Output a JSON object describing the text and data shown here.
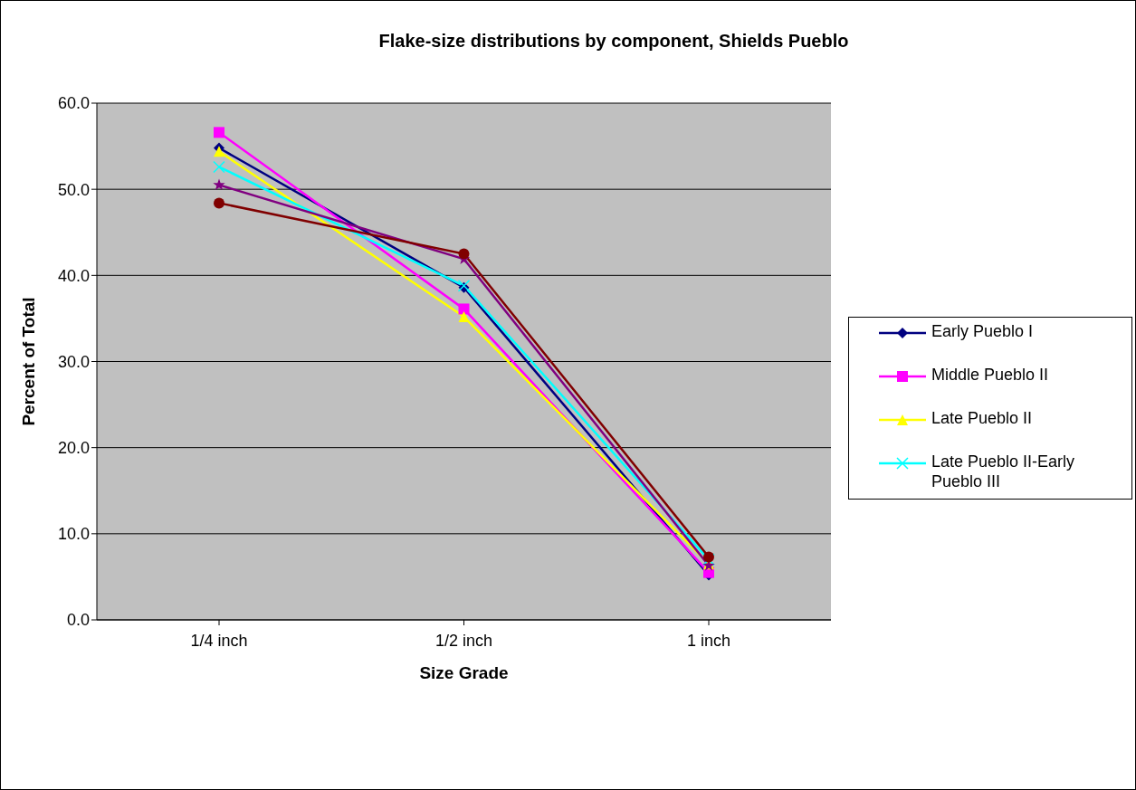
{
  "chart_data": {
    "type": "line",
    "title": "Flake-size distributions by component, Shields Pueblo",
    "xlabel": "Size Grade",
    "ylabel": "Percent of Total",
    "categories": [
      "1/4 inch",
      "1/2 inch",
      "1 inch"
    ],
    "series": [
      {
        "name": "Early Pueblo I",
        "color": "#000080",
        "marker": "diamond",
        "values": [
          54.8,
          38.6,
          5.2
        ]
      },
      {
        "name": "Middle Pueblo II",
        "color": "#ff00ff",
        "marker": "square",
        "values": [
          56.6,
          36.1,
          5.5
        ]
      },
      {
        "name": "Late Pueblo II",
        "color": "#ffff00",
        "marker": "triangle",
        "values": [
          54.4,
          35.2,
          6.5
        ]
      },
      {
        "name": "Late Pueblo II-Early Pueblo III",
        "color": "#00ffff",
        "marker": "cross",
        "values": [
          52.6,
          38.8,
          7.0
        ]
      },
      {
        "color": "#800080",
        "marker": "star",
        "values": [
          50.5,
          41.9,
          6.3
        ]
      },
      {
        "color": "#800000",
        "marker": "circle",
        "values": [
          48.4,
          42.5,
          7.3
        ]
      }
    ],
    "ylim": [
      0,
      60
    ],
    "yticks": [
      {
        "value": 0,
        "label": "0.0"
      },
      {
        "value": 10,
        "label": "10.0"
      },
      {
        "value": 20,
        "label": "20.0"
      },
      {
        "value": 30,
        "label": "30.0"
      },
      {
        "value": 40,
        "label": "40.0"
      },
      {
        "value": 50,
        "label": "50.0"
      },
      {
        "value": 60,
        "label": "60.0"
      }
    ],
    "grid": "y",
    "legend": "right"
  }
}
